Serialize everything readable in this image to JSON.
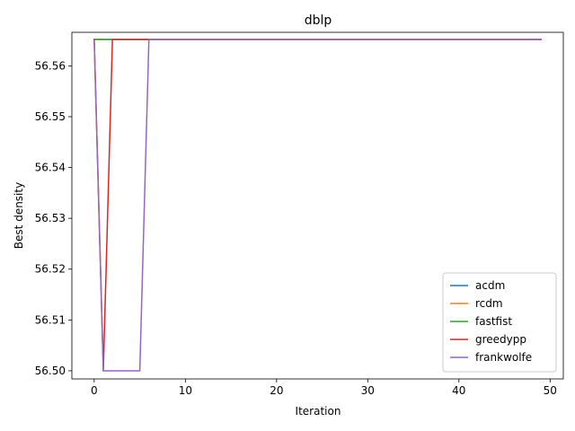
{
  "chart_data": {
    "type": "line",
    "title": "dblp",
    "xlabel": "Iteration",
    "ylabel": "Best density",
    "xlim": [
      -2.45,
      51.45
    ],
    "ylim": [
      56.4984,
      56.5666
    ],
    "xticks": [
      0,
      10,
      20,
      30,
      40,
      50
    ],
    "yticks": [
      56.5,
      56.51,
      56.52,
      56.53,
      56.54,
      56.55,
      56.56
    ],
    "ytick_labels": [
      "56.50",
      "56.51",
      "56.52",
      "56.53",
      "56.54",
      "56.55",
      "56.56"
    ],
    "legend_position": "lower-right",
    "grid": false,
    "series": [
      {
        "name": "acdm",
        "color": "#1f77b4",
        "x": [
          0,
          49
        ],
        "y": [
          56.5652,
          56.5652
        ]
      },
      {
        "name": "rcdm",
        "color": "#ff7f0e",
        "x": [
          0,
          49
        ],
        "y": [
          56.5652,
          56.5652
        ]
      },
      {
        "name": "fastfist",
        "color": "#2ca02c",
        "x": [
          0,
          49
        ],
        "y": [
          56.5652,
          56.5652
        ]
      },
      {
        "name": "greedypp",
        "color": "#d62728",
        "x": [
          0,
          1,
          2,
          49
        ],
        "y": [
          56.5652,
          56.5,
          56.5652,
          56.5652
        ]
      },
      {
        "name": "frankwolfe",
        "color": "#9467bd",
        "x": [
          0,
          1,
          2,
          3,
          4,
          5,
          6,
          49
        ],
        "y": [
          56.5652,
          56.5,
          56.5,
          56.5,
          56.5,
          56.5,
          56.5652,
          56.5652
        ]
      }
    ]
  }
}
